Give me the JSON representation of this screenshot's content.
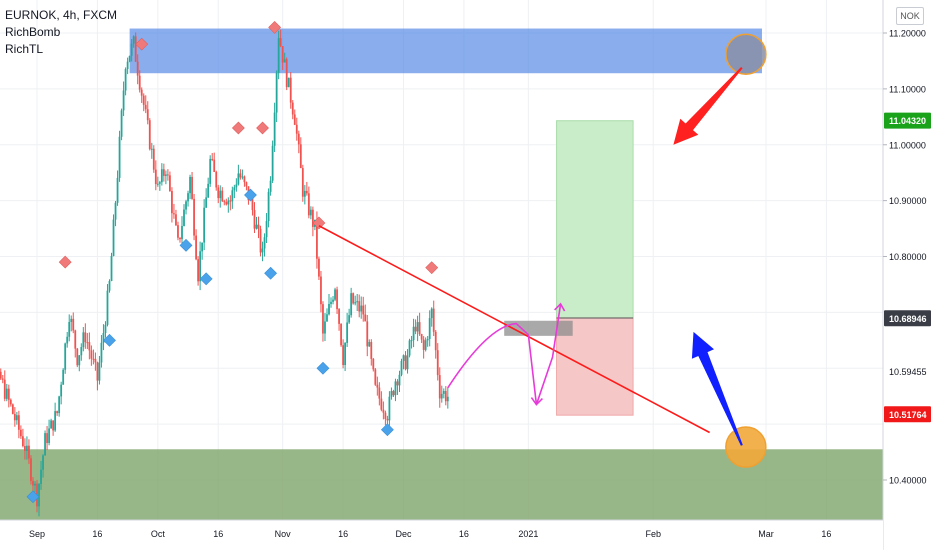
{
  "legend": {
    "symbol": "EURNOK, 4h, FXCM",
    "indicator_1": "RichBomb",
    "indicator_2": "RichTL"
  },
  "currency": "NOK",
  "colors": {
    "up": "#26a69a",
    "down": "#ef5350",
    "sell_signal": "#f07a7a",
    "buy_signal": "#4aa3ea",
    "resistance_zone": "#5b8ee6",
    "support_zone": "#7ea56a",
    "profit_zone": "#c9ecc9",
    "loss_zone": "#f6c7c7",
    "trendline": "#ff1a1a",
    "projection": "#e63bd8",
    "arrow_down": "#ff2020",
    "arrow_up": "#1020ff",
    "circle": "#f2a93b",
    "price_green": "#1aa31a",
    "price_red": "#f01818"
  },
  "chart_data": {
    "type": "candlestick",
    "symbol": "EURNOK",
    "timeframe": "4h",
    "ylim": [
      10.34,
      11.225
    ],
    "y_ticks": [
      11.2,
      11.1,
      11.0,
      10.9,
      10.8,
      10.4
    ],
    "y_tick_labels": [
      "11.20000",
      "11.10000",
      "11.00000",
      "10.90000",
      "10.80000",
      "10.40000"
    ],
    "x_ticks": [
      {
        "label": "Sep",
        "date": "2020-09-01"
      },
      {
        "label": "16",
        "date": "2020-09-16"
      },
      {
        "label": "Oct",
        "date": "2020-10-01"
      },
      {
        "label": "16",
        "date": "2020-10-16"
      },
      {
        "label": "Nov",
        "date": "2020-11-01"
      },
      {
        "label": "16",
        "date": "2020-11-16"
      },
      {
        "label": "Dec",
        "date": "2020-12-01"
      },
      {
        "label": "16",
        "date": "2020-12-16"
      },
      {
        "label": "2021",
        "date": "2021-01-01"
      },
      {
        "label": "Feb",
        "date": "2021-02-01"
      },
      {
        "label": "Mar",
        "date": "2021-03-01"
      },
      {
        "label": "16",
        "date": "2021-03-16"
      }
    ],
    "price_labels": [
      {
        "value": 11.0432,
        "text": "11.04320",
        "style": "green"
      },
      {
        "value": 10.68946,
        "text": "10.68946",
        "style": "dark"
      },
      {
        "value": 10.59455,
        "text": "10.59455",
        "style": "plain"
      },
      {
        "value": 10.51764,
        "text": "10.51764",
        "style": "red"
      }
    ],
    "close_path": [
      [
        "2020-08-17",
        10.65
      ],
      [
        "2020-08-20",
        10.56
      ],
      [
        "2020-08-23",
        10.58
      ],
      [
        "2020-08-26",
        10.52
      ],
      [
        "2020-08-29",
        10.46
      ],
      [
        "2020-09-01",
        10.37
      ],
      [
        "2020-09-03",
        10.47
      ],
      [
        "2020-09-06",
        10.52
      ],
      [
        "2020-09-09",
        10.7
      ],
      [
        "2020-09-11",
        10.62
      ],
      [
        "2020-09-13",
        10.66
      ],
      [
        "2020-09-16",
        10.58
      ],
      [
        "2020-09-19",
        10.75
      ],
      [
        "2020-09-21",
        10.95
      ],
      [
        "2020-09-23",
        11.15
      ],
      [
        "2020-09-25",
        11.18
      ],
      [
        "2020-09-28",
        11.05
      ],
      [
        "2020-10-01",
        10.92
      ],
      [
        "2020-10-03",
        10.96
      ],
      [
        "2020-10-06",
        10.82
      ],
      [
        "2020-10-09",
        10.94
      ],
      [
        "2020-10-11",
        10.77
      ],
      [
        "2020-10-14",
        10.97
      ],
      [
        "2020-10-16",
        10.92
      ],
      [
        "2020-10-19",
        10.9
      ],
      [
        "2020-10-21",
        10.95
      ],
      [
        "2020-10-24",
        10.9
      ],
      [
        "2020-10-27",
        10.8
      ],
      [
        "2020-10-29",
        10.95
      ],
      [
        "2020-10-31",
        11.2
      ],
      [
        "2020-11-02",
        11.12
      ],
      [
        "2020-11-04",
        11.05
      ],
      [
        "2020-11-06",
        10.92
      ],
      [
        "2020-11-09",
        10.85
      ],
      [
        "2020-11-11",
        10.66
      ],
      [
        "2020-11-14",
        10.75
      ],
      [
        "2020-11-16",
        10.62
      ],
      [
        "2020-11-18",
        10.72
      ],
      [
        "2020-11-21",
        10.7
      ],
      [
        "2020-11-24",
        10.56
      ],
      [
        "2020-11-27",
        10.52
      ],
      [
        "2020-11-29",
        10.58
      ],
      [
        "2020-12-02",
        10.62
      ],
      [
        "2020-12-04",
        10.68
      ],
      [
        "2020-12-06",
        10.63
      ],
      [
        "2020-12-08",
        10.7
      ],
      [
        "2020-12-10",
        10.56
      ],
      [
        "2020-12-12",
        10.55
      ]
    ],
    "signals": [
      {
        "type": "sell",
        "date": "2020-08-17",
        "price": 10.68
      },
      {
        "type": "buy",
        "date": "2020-08-31",
        "price": 10.37
      },
      {
        "type": "sell",
        "date": "2020-09-08",
        "price": 10.79
      },
      {
        "type": "buy",
        "date": "2020-09-19",
        "price": 10.65
      },
      {
        "type": "sell",
        "date": "2020-09-27",
        "price": 11.18
      },
      {
        "type": "buy",
        "date": "2020-10-08",
        "price": 10.82
      },
      {
        "type": "buy",
        "date": "2020-10-13",
        "price": 10.76
      },
      {
        "type": "sell",
        "date": "2020-10-21",
        "price": 11.03
      },
      {
        "type": "buy",
        "date": "2020-10-24",
        "price": 10.91
      },
      {
        "type": "sell",
        "date": "2020-10-27",
        "price": 11.03
      },
      {
        "type": "buy",
        "date": "2020-10-29",
        "price": 10.77
      },
      {
        "type": "sell",
        "date": "2020-10-30",
        "price": 11.21
      },
      {
        "type": "sell",
        "date": "2020-11-10",
        "price": 10.86
      },
      {
        "type": "buy",
        "date": "2020-11-11",
        "price": 10.6
      },
      {
        "type": "buy",
        "date": "2020-11-27",
        "price": 10.49
      },
      {
        "type": "sell",
        "date": "2020-12-08",
        "price": 10.78
      }
    ],
    "zones": {
      "resistance": {
        "from": "2020-09-24",
        "to": "2021-02-28",
        "y_low": 11.128,
        "y_high": 11.208
      },
      "support": {
        "from": "2020-08-17",
        "to": "2021-03-24",
        "y_low": 10.35,
        "y_high": 10.455
      }
    },
    "position": {
      "from": "2021-01-08",
      "to": "2021-01-27",
      "entry": 10.69,
      "target": 11.043,
      "stop": 10.516
    },
    "entry_marker": {
      "from": "2020-12-26",
      "to": "2021-01-12",
      "y_low": 10.658,
      "y_high": 10.685
    },
    "trendline": [
      [
        "2020-11-10",
        10.855
      ],
      [
        "2021-02-15",
        10.485
      ]
    ],
    "projection_path": [
      [
        "2020-12-12",
        10.565
      ],
      [
        "2020-12-22",
        10.64
      ],
      [
        "2020-12-29",
        10.68
      ],
      [
        "2021-01-01",
        10.66
      ],
      [
        "2021-01-03",
        10.535
      ],
      [
        "2021-01-07",
        10.62
      ],
      [
        "2021-01-09",
        10.715
      ]
    ],
    "arrows": [
      {
        "direction": "down",
        "from": [
          "2021-02-23",
          11.138
        ],
        "to": [
          "2021-02-06",
          11.0
        ],
        "color": "arrow_down"
      },
      {
        "direction": "up",
        "from": [
          "2021-02-23",
          10.462
        ],
        "to": [
          "2021-02-11",
          10.665
        ],
        "color": "arrow_up"
      }
    ],
    "circles": [
      {
        "date": "2021-02-24",
        "price": 11.162,
        "fill": "resistance_zone"
      },
      {
        "date": "2021-02-24",
        "price": 10.459,
        "fill": "circle"
      }
    ]
  }
}
